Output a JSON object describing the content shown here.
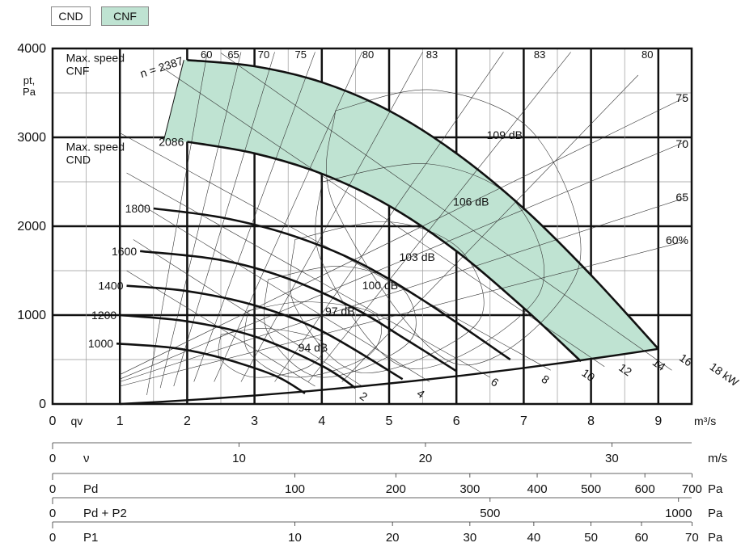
{
  "legend": {
    "cnd_label": "CND",
    "cnf_label": "CNF",
    "cnd_color": "#ffffff",
    "cnf_color": "#bfe3d2"
  },
  "chart_data": {
    "type": "line",
    "title": "",
    "xlabel": "qv",
    "x_unit": "m³/s",
    "ylabel_line1": "pt,",
    "ylabel_line2": "Pa",
    "xlim": [
      0,
      9.5
    ],
    "ylim": [
      0,
      4000
    ],
    "x_ticks": [
      0,
      1,
      2,
      3,
      4,
      5,
      6,
      7,
      8,
      9
    ],
    "y_ticks": [
      0,
      1000,
      2000,
      3000,
      4000
    ],
    "grid": true,
    "fill_color": "#bfe3d2",
    "max_speed_labels": [
      {
        "line1": "Max. speed",
        "line2": "CNF",
        "x": 0.2,
        "y": 3850
      },
      {
        "line1": "Max. speed",
        "line2": "CND",
        "x": 0.2,
        "y": 2850
      }
    ],
    "speed_curves": [
      {
        "rpm": "n = 2387",
        "x": [
          2.0,
          3.0,
          4.0,
          5.0,
          6.0,
          7.0,
          8.0,
          9.0
        ],
        "y": [
          3870,
          3800,
          3620,
          3300,
          2820,
          2200,
          1450,
          620
        ]
      },
      {
        "rpm": "2086",
        "x": [
          2.0,
          3.0,
          4.0,
          5.0,
          6.0,
          7.0,
          7.85
        ],
        "y": [
          2950,
          2820,
          2590,
          2230,
          1720,
          1080,
          480
        ]
      },
      {
        "rpm": "1800",
        "x": [
          1.5,
          2.5,
          3.5,
          4.5,
          5.5,
          6.8
        ],
        "y": [
          2200,
          2100,
          1910,
          1610,
          1170,
          500
        ]
      },
      {
        "rpm": "1600",
        "x": [
          1.3,
          2.5,
          3.5,
          4.5,
          5.2,
          6.0
        ],
        "y": [
          1720,
          1620,
          1410,
          1070,
          750,
          370
        ]
      },
      {
        "rpm": "1400",
        "x": [
          1.1,
          2.0,
          3.0,
          4.0,
          5.2
        ],
        "y": [
          1330,
          1270,
          1110,
          820,
          280
        ]
      },
      {
        "rpm": "1200",
        "x": [
          1.0,
          2.0,
          3.0,
          4.0,
          4.5
        ],
        "y": [
          1000,
          930,
          760,
          430,
          180
        ]
      },
      {
        "rpm": "1000",
        "x": [
          0.95,
          1.8,
          2.5,
          3.3,
          3.75
        ],
        "y": [
          680,
          630,
          520,
          320,
          120
        ]
      }
    ],
    "power_labels": [
      "2",
      "4",
      "6",
      "8",
      "10",
      "12",
      "14",
      "16",
      "18 kW"
    ],
    "power_label_pos": [
      [
        4.55,
        70
      ],
      [
        5.4,
        100
      ],
      [
        6.5,
        230
      ],
      [
        7.25,
        260
      ],
      [
        7.85,
        330
      ],
      [
        8.4,
        390
      ],
      [
        8.9,
        450
      ],
      [
        9.3,
        500
      ],
      [
        9.75,
        400
      ]
    ],
    "sound_labels": [
      "94 dB",
      "97 dB",
      "100 dB",
      "103 dB",
      "106 dB",
      "109 dB"
    ],
    "sound_label_pos": [
      [
        3.65,
        590
      ],
      [
        4.05,
        1000
      ],
      [
        4.6,
        1290
      ],
      [
        5.15,
        1610
      ],
      [
        5.95,
        2230
      ],
      [
        6.45,
        2980
      ]
    ],
    "efficiency_labels_top": [
      "60",
      "65",
      "70",
      "75",
      "80",
      "83",
      "83",
      "80"
    ],
    "efficiency_top_x": [
      2.2,
      2.6,
      3.05,
      3.6,
      4.6,
      5.55,
      7.15,
      8.75
    ],
    "efficiency_labels_right": [
      "75",
      "70",
      "65",
      "60%"
    ],
    "efficiency_right_y": [
      3400,
      2880,
      2280,
      1800
    ],
    "secondary_scales": [
      {
        "symbol": "0",
        "name": "ν",
        "unit": "m/s",
        "labels": [
          "10",
          "20",
          "30"
        ],
        "label_q": [
          2.77,
          5.54,
          8.31
        ]
      },
      {
        "symbol": "0",
        "name": "Pd",
        "unit": "Pa",
        "labels": [
          "100",
          "200",
          "300",
          "400",
          "500",
          "600",
          "700"
        ],
        "label_q": [
          3.6,
          5.1,
          6.2,
          7.2,
          8.0,
          8.8,
          9.5
        ]
      },
      {
        "symbol": "0",
        "name": "Pd + P2",
        "unit": "Pa",
        "labels": [
          "500",
          "1000"
        ],
        "label_q": [
          6.5,
          9.3
        ]
      },
      {
        "symbol": "0",
        "name": "P1",
        "unit": "Pa",
        "labels": [
          "10",
          "20",
          "30",
          "40",
          "50",
          "60",
          "70"
        ],
        "label_q": [
          3.6,
          5.05,
          6.2,
          7.15,
          8.0,
          8.75,
          9.5
        ]
      }
    ]
  }
}
